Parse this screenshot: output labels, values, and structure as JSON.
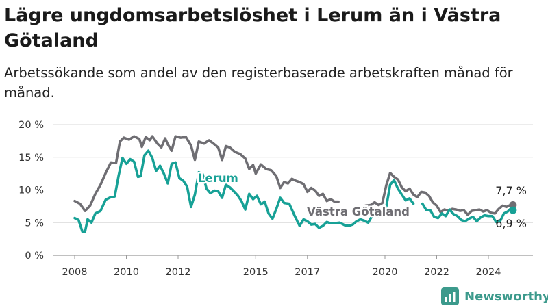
{
  "title": "Lägre ungdomsarbetslöshet i Lerum än i Västra Götaland",
  "subtitle": "Arbetssökande som andel av den registerbaserade arbetskraften månad för månad.",
  "brand": {
    "name": "Newsworthy",
    "color": "#3c9a8c"
  },
  "chart_data": {
    "type": "line",
    "title": "Lägre ungdomsarbetslöshet i Lerum än i Västra Götaland",
    "subtitle": "Arbetssökande som andel av den registerbaserade arbetskraften månad för månad.",
    "xlabel": "",
    "ylabel": "",
    "xlim": [
      2007.5,
      2025.8
    ],
    "ylim": [
      0,
      20
    ],
    "grid": true,
    "x_ticks": [
      {
        "value": 2008,
        "label": "2008"
      },
      {
        "value": 2010,
        "label": "2010"
      },
      {
        "value": 2012,
        "label": "2012"
      },
      {
        "value": 2015,
        "label": "2015"
      },
      {
        "value": 2017,
        "label": "2017"
      },
      {
        "value": 2020,
        "label": "2020"
      },
      {
        "value": 2022,
        "label": "2022"
      },
      {
        "value": 2024,
        "label": "2024"
      }
    ],
    "y_ticks": [
      {
        "value": 0,
        "label": "0 %"
      },
      {
        "value": 5,
        "label": "5 %"
      },
      {
        "value": 10,
        "label": "10 %"
      },
      {
        "value": 15,
        "label": "15 %"
      },
      {
        "value": 20,
        "label": "20 %"
      }
    ],
    "series": [
      {
        "name": "Västra Götaland",
        "color": "#6f6e73",
        "end_label": "7,7 %",
        "points": [
          [
            2008.0,
            8.3
          ],
          [
            2008.2,
            7.9
          ],
          [
            2008.4,
            6.8
          ],
          [
            2008.6,
            7.6
          ],
          [
            2008.8,
            9.4
          ],
          [
            2009.0,
            10.8
          ],
          [
            2009.2,
            12.6
          ],
          [
            2009.4,
            14.2
          ],
          [
            2009.6,
            14.1
          ],
          [
            2009.75,
            17.4
          ],
          [
            2009.9,
            18.0
          ],
          [
            2010.1,
            17.7
          ],
          [
            2010.3,
            18.2
          ],
          [
            2010.5,
            17.8
          ],
          [
            2010.6,
            16.6
          ],
          [
            2010.75,
            18.1
          ],
          [
            2010.9,
            17.6
          ],
          [
            2011.0,
            18.2
          ],
          [
            2011.2,
            17.1
          ],
          [
            2011.35,
            16.5
          ],
          [
            2011.5,
            17.9
          ],
          [
            2011.6,
            17.0
          ],
          [
            2011.75,
            16.0
          ],
          [
            2011.9,
            18.2
          ],
          [
            2012.1,
            18.0
          ],
          [
            2012.3,
            18.1
          ],
          [
            2012.5,
            16.8
          ],
          [
            2012.65,
            14.6
          ],
          [
            2012.8,
            17.4
          ],
          [
            2013.0,
            17.1
          ],
          [
            2013.2,
            17.6
          ],
          [
            2013.4,
            17.0
          ],
          [
            2013.55,
            16.5
          ],
          [
            2013.7,
            14.6
          ],
          [
            2013.85,
            16.7
          ],
          [
            2014.0,
            16.5
          ],
          [
            2014.2,
            15.8
          ],
          [
            2014.4,
            15.5
          ],
          [
            2014.6,
            14.8
          ],
          [
            2014.75,
            13.2
          ],
          [
            2014.9,
            13.8
          ],
          [
            2015.0,
            12.5
          ],
          [
            2015.2,
            13.9
          ],
          [
            2015.4,
            13.2
          ],
          [
            2015.6,
            13.0
          ],
          [
            2015.8,
            12.1
          ],
          [
            2015.95,
            10.3
          ],
          [
            2016.1,
            11.2
          ],
          [
            2016.25,
            11.0
          ],
          [
            2016.4,
            11.7
          ],
          [
            2016.55,
            11.4
          ],
          [
            2016.7,
            11.2
          ],
          [
            2016.85,
            10.9
          ],
          [
            2017.0,
            9.7
          ],
          [
            2017.15,
            10.3
          ],
          [
            2017.3,
            9.9
          ],
          [
            2017.45,
            9.1
          ],
          [
            2017.6,
            9.4
          ],
          [
            2017.75,
            8.3
          ],
          [
            2017.9,
            8.6
          ],
          [
            2018.05,
            8.2
          ],
          [
            2018.2,
            8.2
          ]
        ],
        "points_after_break": [
          [
            2019.25,
            7.6
          ],
          [
            2019.45,
            7.7
          ],
          [
            2019.6,
            8.1
          ],
          [
            2019.75,
            7.7
          ],
          [
            2019.9,
            8.0
          ],
          [
            2020.05,
            10.7
          ],
          [
            2020.2,
            12.6
          ],
          [
            2020.35,
            12.0
          ],
          [
            2020.5,
            11.6
          ],
          [
            2020.65,
            10.4
          ],
          [
            2020.8,
            9.8
          ],
          [
            2020.95,
            10.2
          ],
          [
            2021.1,
            9.3
          ],
          [
            2021.25,
            8.9
          ],
          [
            2021.4,
            9.7
          ],
          [
            2021.55,
            9.6
          ],
          [
            2021.7,
            9.1
          ],
          [
            2021.85,
            8.1
          ],
          [
            2022.0,
            7.6
          ],
          [
            2022.15,
            6.6
          ],
          [
            2022.3,
            7.0
          ],
          [
            2022.45,
            6.8
          ],
          [
            2022.6,
            7.1
          ],
          [
            2022.75,
            7.0
          ],
          [
            2022.9,
            6.8
          ],
          [
            2023.05,
            6.9
          ],
          [
            2023.2,
            6.2
          ],
          [
            2023.35,
            6.8
          ],
          [
            2023.5,
            6.9
          ],
          [
            2023.65,
            7.0
          ],
          [
            2023.8,
            6.7
          ],
          [
            2023.95,
            6.9
          ],
          [
            2024.1,
            6.5
          ],
          [
            2024.25,
            6.4
          ],
          [
            2024.4,
            7.1
          ],
          [
            2024.55,
            7.6
          ],
          [
            2024.7,
            7.4
          ],
          [
            2024.85,
            7.7
          ],
          [
            2024.95,
            7.7
          ]
        ]
      },
      {
        "name": "Lerum",
        "color": "#17a196",
        "end_label": "6,9 %",
        "points": [
          [
            2008.0,
            5.7
          ],
          [
            2008.15,
            5.4
          ],
          [
            2008.3,
            3.6
          ],
          [
            2008.4,
            3.6
          ],
          [
            2008.5,
            5.5
          ],
          [
            2008.65,
            5.0
          ],
          [
            2008.8,
            6.4
          ],
          [
            2009.0,
            6.8
          ],
          [
            2009.2,
            8.5
          ],
          [
            2009.4,
            8.9
          ],
          [
            2009.55,
            9.0
          ],
          [
            2009.7,
            12.2
          ],
          [
            2009.85,
            14.9
          ],
          [
            2010.0,
            14.0
          ],
          [
            2010.15,
            14.7
          ],
          [
            2010.3,
            14.3
          ],
          [
            2010.45,
            12.0
          ],
          [
            2010.55,
            12.1
          ],
          [
            2010.7,
            15.3
          ],
          [
            2010.85,
            16.0
          ],
          [
            2011.0,
            14.9
          ],
          [
            2011.15,
            12.9
          ],
          [
            2011.3,
            13.7
          ],
          [
            2011.45,
            12.5
          ],
          [
            2011.6,
            11.0
          ],
          [
            2011.75,
            14.0
          ],
          [
            2011.9,
            14.2
          ],
          [
            2012.05,
            11.8
          ],
          [
            2012.2,
            11.4
          ],
          [
            2012.35,
            10.5
          ],
          [
            2012.5,
            7.4
          ],
          [
            2012.65,
            9.3
          ],
          [
            2012.8,
            12.7
          ],
          [
            2012.95,
            12.4
          ],
          [
            2013.1,
            10.2
          ],
          [
            2013.25,
            9.5
          ],
          [
            2013.4,
            9.9
          ],
          [
            2013.55,
            9.8
          ],
          [
            2013.7,
            8.8
          ],
          [
            2013.85,
            10.8
          ],
          [
            2014.0,
            10.4
          ],
          [
            2014.15,
            9.8
          ],
          [
            2014.3,
            9.2
          ],
          [
            2014.45,
            8.3
          ],
          [
            2014.6,
            7.0
          ],
          [
            2014.75,
            9.4
          ],
          [
            2014.9,
            8.6
          ],
          [
            2015.05,
            9.1
          ],
          [
            2015.2,
            7.8
          ],
          [
            2015.35,
            8.2
          ],
          [
            2015.5,
            6.4
          ],
          [
            2015.65,
            5.6
          ],
          [
            2015.8,
            7.1
          ],
          [
            2015.95,
            8.8
          ],
          [
            2016.1,
            8.0
          ],
          [
            2016.3,
            7.9
          ],
          [
            2016.5,
            6.1
          ],
          [
            2016.7,
            4.5
          ],
          [
            2016.85,
            5.5
          ],
          [
            2017.0,
            5.2
          ],
          [
            2017.15,
            4.7
          ],
          [
            2017.3,
            4.8
          ],
          [
            2017.45,
            4.2
          ],
          [
            2017.6,
            4.5
          ],
          [
            2017.75,
            5.1
          ],
          [
            2017.9,
            4.9
          ],
          [
            2018.05,
            4.9
          ],
          [
            2018.25,
            5.0
          ],
          [
            2018.45,
            4.6
          ],
          [
            2018.6,
            4.5
          ],
          [
            2018.75,
            4.7
          ],
          [
            2018.9,
            5.2
          ],
          [
            2019.05,
            5.5
          ],
          [
            2019.2,
            5.3
          ],
          [
            2019.35,
            5.0
          ],
          [
            2019.5,
            6.0
          ],
          [
            2019.65,
            6.1
          ],
          [
            2019.8,
            6.0
          ],
          [
            2019.95,
            6.4
          ],
          [
            2020.05,
            7.4
          ],
          [
            2020.2,
            10.8
          ],
          [
            2020.35,
            11.5
          ],
          [
            2020.5,
            10.2
          ],
          [
            2020.65,
            9.3
          ],
          [
            2020.8,
            8.4
          ],
          [
            2020.95,
            8.7
          ],
          [
            2021.1,
            7.9
          ]
        ],
        "points_after_break": [
          [
            2021.45,
            7.9
          ],
          [
            2021.6,
            6.9
          ],
          [
            2021.75,
            6.9
          ],
          [
            2021.9,
            5.9
          ],
          [
            2022.05,
            5.7
          ],
          [
            2022.2,
            6.4
          ],
          [
            2022.35,
            6.0
          ],
          [
            2022.5,
            7.0
          ],
          [
            2022.65,
            6.3
          ],
          [
            2022.8,
            6.0
          ],
          [
            2022.95,
            5.4
          ],
          [
            2023.1,
            5.2
          ],
          [
            2023.25,
            5.6
          ],
          [
            2023.4,
            5.9
          ],
          [
            2023.55,
            5.2
          ],
          [
            2023.7,
            5.8
          ],
          [
            2023.85,
            6.1
          ],
          [
            2024.0,
            6.0
          ],
          [
            2024.15,
            6.0
          ],
          [
            2024.3,
            5.1
          ],
          [
            2024.45,
            5.2
          ],
          [
            2024.6,
            6.4
          ],
          [
            2024.75,
            6.7
          ],
          [
            2024.85,
            7.1
          ],
          [
            2024.95,
            6.9
          ]
        ]
      }
    ],
    "annotations": [
      {
        "text": "Lerum",
        "series": "Lerum"
      },
      {
        "text": "Västra Götaland",
        "series": "Västra Götaland"
      },
      {
        "text": "7,7 %",
        "series": "Västra Götaland"
      },
      {
        "text": "6,9 %",
        "series": "Lerum"
      }
    ]
  }
}
